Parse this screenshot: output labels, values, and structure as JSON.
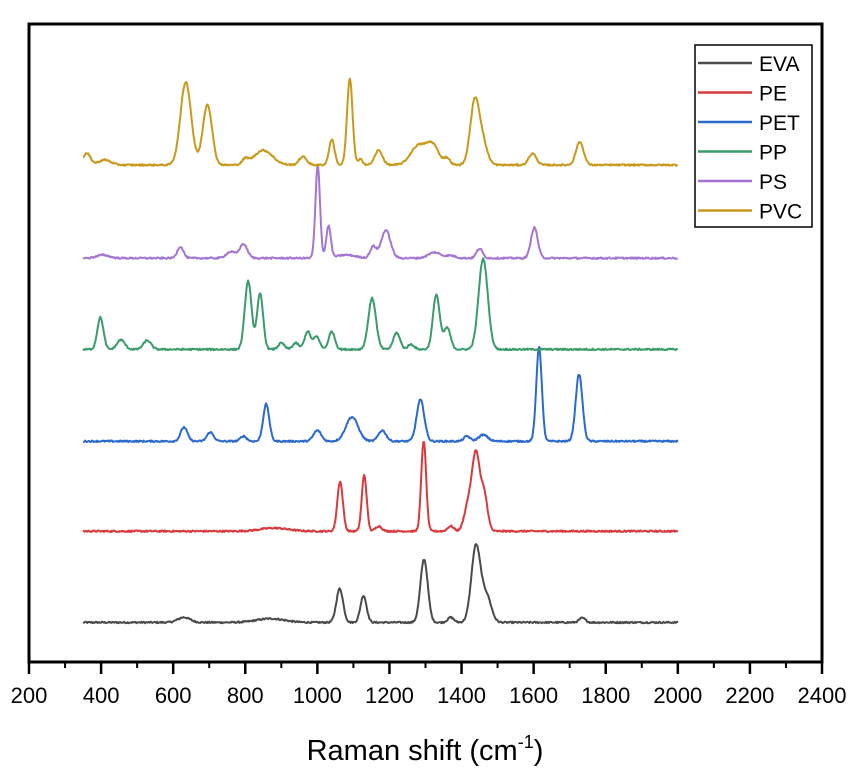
{
  "chart_data": {
    "type": "line",
    "title": "",
    "xlabel": "Raman shift (cm",
    "xlabel_superscript": "-1",
    "xlabel_suffix": ")",
    "ylabel": "",
    "xlim": [
      200,
      2400
    ],
    "x_ticks": [
      200,
      400,
      600,
      800,
      1000,
      1200,
      1400,
      1600,
      1800,
      2000,
      2200,
      2400
    ],
    "x_minor_step": 100,
    "y_ticks_visible": false,
    "ylim": [
      0,
      100
    ],
    "data_range": [
      350,
      2000
    ],
    "legend_position": "top-right",
    "grid": false,
    "note": "Stacked spectra with vertical offsets; intensities in arbitrary units, each series described by baseline offset and Gaussian peaks (center cm-1, height a.u., FWHM cm-1).",
    "series": [
      {
        "name": "EVA",
        "color": "#4a4a4a",
        "offset": 6.2,
        "peaks": [
          [
            630,
            0.8,
            40
          ],
          [
            870,
            0.6,
            90
          ],
          [
            1062,
            5.3,
            22
          ],
          [
            1128,
            4.2,
            20
          ],
          [
            1296,
            9.9,
            24
          ],
          [
            1370,
            0.8,
            20
          ],
          [
            1440,
            12.0,
            30
          ],
          [
            1470,
            4.0,
            30
          ],
          [
            1735,
            0.7,
            20
          ]
        ]
      },
      {
        "name": "PE",
        "color": "#d9393c",
        "offset": 20.5,
        "peaks": [
          [
            880,
            0.5,
            90
          ],
          [
            1063,
            7.8,
            18
          ],
          [
            1130,
            8.8,
            16
          ],
          [
            1170,
            0.8,
            20
          ],
          [
            1295,
            14.2,
            16
          ],
          [
            1370,
            0.8,
            20
          ],
          [
            1418,
            4.0,
            25
          ],
          [
            1440,
            12.0,
            25
          ],
          [
            1463,
            5.5,
            22
          ]
        ]
      },
      {
        "name": "PET",
        "color": "#2a6acc",
        "offset": 34.6,
        "peaks": [
          [
            630,
            2.2,
            22
          ],
          [
            703,
            1.4,
            22
          ],
          [
            795,
            0.8,
            20
          ],
          [
            858,
            5.8,
            20
          ],
          [
            1000,
            1.7,
            25
          ],
          [
            1096,
            3.8,
            40
          ],
          [
            1180,
            1.7,
            25
          ],
          [
            1286,
            6.5,
            25
          ],
          [
            1415,
            0.8,
            20
          ],
          [
            1460,
            1.0,
            30
          ],
          [
            1615,
            14.8,
            18
          ],
          [
            1726,
            10.5,
            22
          ]
        ]
      },
      {
        "name": "PP",
        "color": "#3a9b6b",
        "offset": 49.0,
        "peaks": [
          [
            398,
            5.0,
            20
          ],
          [
            455,
            1.5,
            25
          ],
          [
            528,
            1.4,
            25
          ],
          [
            808,
            10.7,
            22
          ],
          [
            841,
            8.7,
            20
          ],
          [
            900,
            1.0,
            20
          ],
          [
            940,
            1.0,
            20
          ],
          [
            973,
            2.8,
            20
          ],
          [
            998,
            2.0,
            20
          ],
          [
            1040,
            2.8,
            20
          ],
          [
            1152,
            8.0,
            25
          ],
          [
            1220,
            2.6,
            22
          ],
          [
            1260,
            0.8,
            20
          ],
          [
            1330,
            8.6,
            22
          ],
          [
            1360,
            3.4,
            22
          ],
          [
            1460,
            14.2,
            30
          ]
        ]
      },
      {
        "name": "PS",
        "color": "#a476d2",
        "offset": 63.3,
        "peaks": [
          [
            405,
            0.5,
            40
          ],
          [
            620,
            1.8,
            20
          ],
          [
            760,
            1.0,
            30
          ],
          [
            795,
            2.2,
            25
          ],
          [
            1001,
            14.5,
            15
          ],
          [
            1031,
            5.0,
            15
          ],
          [
            1080,
            0.5,
            60
          ],
          [
            1155,
            1.8,
            20
          ],
          [
            1190,
            4.4,
            30
          ],
          [
            1325,
            0.9,
            40
          ],
          [
            1370,
            0.4,
            30
          ],
          [
            1450,
            1.5,
            20
          ],
          [
            1602,
            4.8,
            22
          ]
        ]
      },
      {
        "name": "PVC",
        "color": "#c9991b",
        "offset": 77.9,
        "peaks": [
          [
            360,
            1.8,
            25
          ],
          [
            410,
            0.8,
            40
          ],
          [
            635,
            13.0,
            35
          ],
          [
            695,
            9.5,
            30
          ],
          [
            800,
            0.8,
            20
          ],
          [
            850,
            2.3,
            60
          ],
          [
            960,
            1.3,
            25
          ],
          [
            1040,
            4.0,
            18
          ],
          [
            1090,
            13.5,
            18
          ],
          [
            1120,
            0.9,
            15
          ],
          [
            1170,
            2.3,
            25
          ],
          [
            1280,
            3.0,
            50
          ],
          [
            1320,
            3.0,
            40
          ],
          [
            1360,
            1.0,
            20
          ],
          [
            1437,
            10.0,
            30
          ],
          [
            1460,
            3.0,
            30
          ],
          [
            1597,
            1.8,
            25
          ],
          [
            1728,
            3.6,
            25
          ]
        ]
      }
    ]
  },
  "legend": {
    "entries": [
      "EVA",
      "PE",
      "PET",
      "PP",
      "PS",
      "PVC"
    ]
  }
}
